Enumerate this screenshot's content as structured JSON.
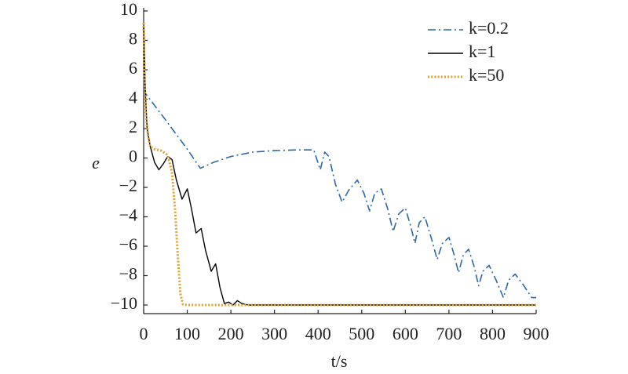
{
  "chart_data": {
    "type": "line",
    "xlabel": "t/s",
    "ylabel": "e",
    "xlim": [
      0,
      900
    ],
    "xticks": [
      0,
      100,
      200,
      300,
      400,
      500,
      600,
      700,
      800,
      900
    ],
    "ylim": [
      -10,
      10
    ],
    "yticks": [
      {
        "value": -10,
        "label": "−10"
      },
      {
        "value": -8,
        "label": "−8"
      },
      {
        "value": -6,
        "label": "−6"
      },
      {
        "value": -4,
        "label": "−4"
      },
      {
        "value": -2,
        "label": "−2"
      },
      0,
      2,
      4,
      6,
      8,
      10
    ],
    "legend": "upper right",
    "series": [
      {
        "name": "k=0.2",
        "color": "#2e67a6",
        "dash": "dashdot",
        "x": [
          0,
          4,
          50,
          100,
          130,
          160,
          200,
          250,
          300,
          350,
          390,
          405,
          415,
          425,
          440,
          455,
          470,
          490,
          505,
          518,
          530,
          545,
          560,
          572,
          585,
          600,
          612,
          622,
          632,
          645,
          660,
          673,
          685,
          700,
          712,
          722,
          733,
          745,
          758,
          768,
          778,
          792,
          808,
          825,
          837,
          852,
          870,
          890,
          900
        ],
        "values": [
          9,
          4.4,
          2.6,
          0.6,
          -0.7,
          -0.3,
          0.1,
          0.4,
          0.5,
          0.55,
          0.55,
          -0.8,
          0.4,
          0.1,
          -1.8,
          -3,
          -2.2,
          -1.5,
          -2.4,
          -3.6,
          -2.4,
          -2.1,
          -3.5,
          -5,
          -3.8,
          -3.4,
          -4.6,
          -5.8,
          -4.4,
          -4,
          -5.5,
          -6.9,
          -5.8,
          -5.4,
          -6.6,
          -7.8,
          -6.6,
          -6.2,
          -7.4,
          -8.7,
          -7.7,
          -7.3,
          -8.3,
          -9.5,
          -8.3,
          -7.9,
          -8.6,
          -9.5,
          -9.5
        ]
      },
      {
        "name": "k=1",
        "color": "#000000",
        "dash": "solid",
        "x": [
          0,
          3,
          8,
          15,
          25,
          35,
          45,
          55,
          65,
          75,
          88,
          100,
          110,
          120,
          132,
          142,
          155,
          165,
          175,
          185,
          195,
          205,
          215,
          225,
          240,
          900
        ],
        "values": [
          9,
          5,
          2,
          0.8,
          -0.3,
          -0.8,
          -0.4,
          0.1,
          -0.1,
          -1.5,
          -2.8,
          -2.1,
          -3.5,
          -5.1,
          -4.8,
          -6.3,
          -7.7,
          -7.2,
          -8.8,
          -9.9,
          -9.8,
          -10,
          -9.7,
          -9.9,
          -10,
          -10
        ]
      },
      {
        "name": "k=50",
        "color": "#e0a22a",
        "dash": "dotted",
        "x": [
          0,
          2,
          5,
          10,
          15,
          25,
          40,
          55,
          65,
          72,
          78,
          84,
          90,
          100,
          900
        ],
        "values": [
          9.2,
          5.5,
          3,
          1.5,
          0.8,
          0.6,
          0.5,
          0.2,
          -1,
          -3.5,
          -6.5,
          -9.2,
          -9.95,
          -10,
          -10
        ]
      }
    ]
  }
}
